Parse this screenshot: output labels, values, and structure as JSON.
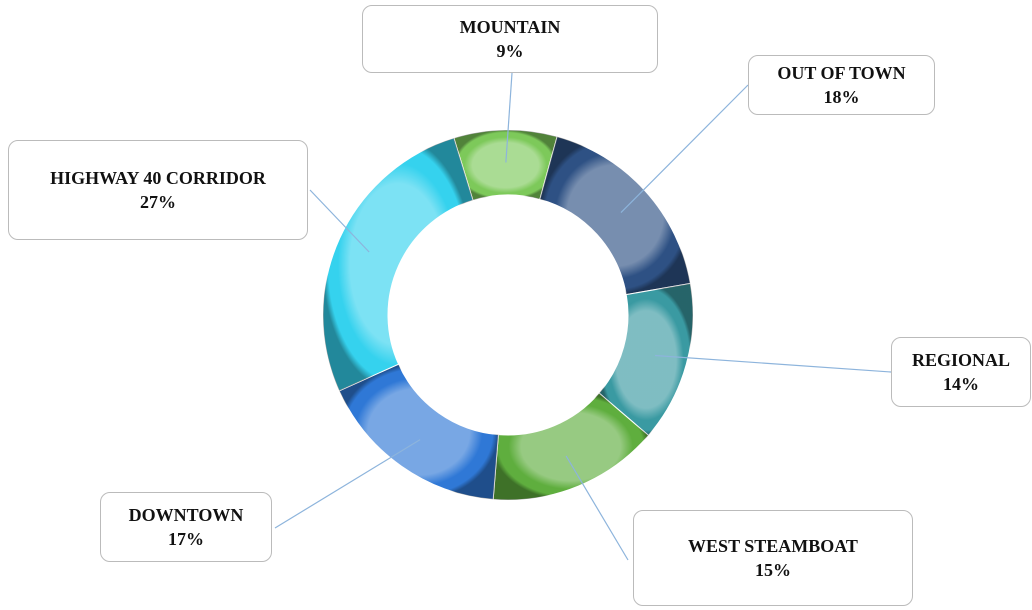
{
  "chart_data": {
    "type": "donut",
    "categories": [
      "MOUNTAIN",
      "OUT OF TOWN",
      "REGIONAL",
      "WEST STEAMBOAT",
      "DOWNTOWN",
      "HIGHWAY 40 CORRIDOR"
    ],
    "values": [
      9,
      18,
      14,
      15,
      17,
      27
    ],
    "value_labels": [
      "9%",
      "18%",
      "14%",
      "15%",
      "17%",
      "27%"
    ],
    "colors": [
      "#7dc95a",
      "#2e5184",
      "#3a9aa2",
      "#5fae3e",
      "#2f78d6",
      "#35d2ee"
    ]
  }
}
